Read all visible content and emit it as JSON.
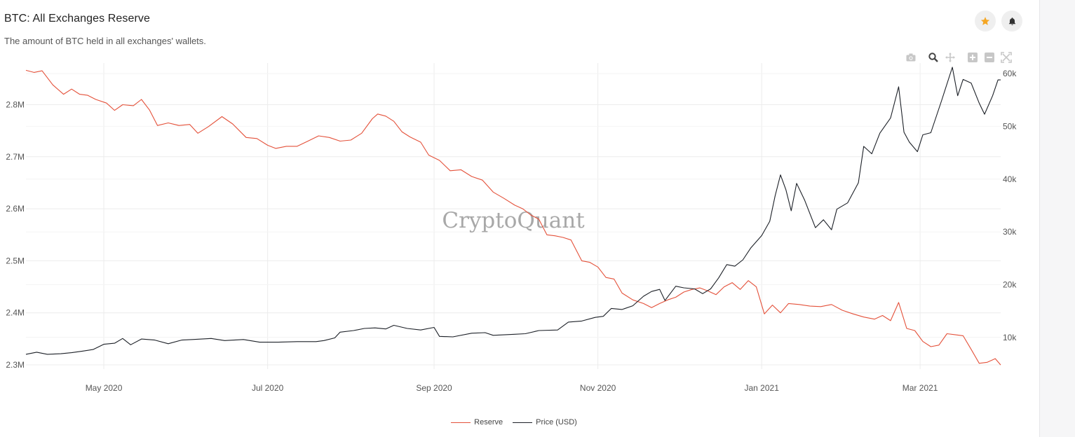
{
  "header": {
    "title": "BTC: All Exchanges Reserve",
    "subtitle": "The amount of BTC held in all exchanges' wallets."
  },
  "icons": {
    "favorite": "star-icon",
    "alerts": "bell-icon",
    "modebar": [
      "camera-icon",
      "zoom-icon",
      "pan-icon",
      "zoom-in-icon",
      "zoom-out-icon",
      "autoscale-icon"
    ]
  },
  "colors": {
    "reserve": "#e4513a",
    "price": "#1c2027",
    "star": "#f5a623",
    "grid": "#ececec"
  },
  "watermark": "CryptoQuant",
  "chart_data": {
    "type": "line",
    "x_start": "2020-04-02",
    "x_end": "2021-03-31",
    "xticks": [
      {
        "date": "2020-05-01",
        "label": "May 2020"
      },
      {
        "date": "2020-07-01",
        "label": "Jul 2020"
      },
      {
        "date": "2020-09-01",
        "label": "Sep 2020"
      },
      {
        "date": "2020-11-01",
        "label": "Nov 2020"
      },
      {
        "date": "2021-01-01",
        "label": "Jan 2021"
      },
      {
        "date": "2021-03-01",
        "label": "Mar 2021"
      }
    ],
    "y_left": {
      "range": [
        2292000,
        2880000
      ],
      "ticks": [
        2300000,
        2400000,
        2500000,
        2600000,
        2700000,
        2800000
      ],
      "tick_labels": [
        "2.3M",
        "2.4M",
        "2.5M",
        "2.6M",
        "2.7M",
        "2.8M"
      ]
    },
    "y_right": {
      "range": [
        4000,
        62000
      ],
      "ticks": [
        10000,
        20000,
        30000,
        40000,
        50000,
        60000
      ],
      "tick_labels": [
        "10k",
        "20k",
        "30k",
        "40k",
        "50k",
        "60k"
      ]
    },
    "grid": true,
    "legend_position": "bottom-center",
    "series": [
      {
        "name": "Reserve",
        "axis": "left",
        "points": [
          [
            "2020-04-02",
            2866000
          ],
          [
            "2020-04-05",
            2862000
          ],
          [
            "2020-04-08",
            2865000
          ],
          [
            "2020-04-12",
            2838000
          ],
          [
            "2020-04-16",
            2820000
          ],
          [
            "2020-04-19",
            2830000
          ],
          [
            "2020-04-22",
            2820000
          ],
          [
            "2020-04-25",
            2818000
          ],
          [
            "2020-04-28",
            2810000
          ],
          [
            "2020-05-02",
            2803000
          ],
          [
            "2020-05-05",
            2789000
          ],
          [
            "2020-05-08",
            2800000
          ],
          [
            "2020-05-12",
            2798000
          ],
          [
            "2020-05-15",
            2810000
          ],
          [
            "2020-05-18",
            2790000
          ],
          [
            "2020-05-21",
            2760000
          ],
          [
            "2020-05-25",
            2765000
          ],
          [
            "2020-05-29",
            2760000
          ],
          [
            "2020-06-02",
            2762000
          ],
          [
            "2020-06-05",
            2745000
          ],
          [
            "2020-06-09",
            2758000
          ],
          [
            "2020-06-14",
            2777000
          ],
          [
            "2020-06-18",
            2763000
          ],
          [
            "2020-06-23",
            2737000
          ],
          [
            "2020-06-27",
            2735000
          ],
          [
            "2020-07-01",
            2722000
          ],
          [
            "2020-07-04",
            2716000
          ],
          [
            "2020-07-08",
            2720000
          ],
          [
            "2020-07-12",
            2720000
          ],
          [
            "2020-07-16",
            2730000
          ],
          [
            "2020-07-20",
            2740000
          ],
          [
            "2020-07-24",
            2737000
          ],
          [
            "2020-07-28",
            2730000
          ],
          [
            "2020-08-01",
            2732000
          ],
          [
            "2020-08-05",
            2745000
          ],
          [
            "2020-08-09",
            2773000
          ],
          [
            "2020-08-11",
            2782000
          ],
          [
            "2020-08-14",
            2778000
          ],
          [
            "2020-08-17",
            2768000
          ],
          [
            "2020-08-20",
            2748000
          ],
          [
            "2020-08-23",
            2738000
          ],
          [
            "2020-08-27",
            2728000
          ],
          [
            "2020-08-30",
            2703000
          ],
          [
            "2020-09-03",
            2693000
          ],
          [
            "2020-09-07",
            2673000
          ],
          [
            "2020-09-11",
            2675000
          ],
          [
            "2020-09-15",
            2662000
          ],
          [
            "2020-09-19",
            2655000
          ],
          [
            "2020-09-23",
            2632000
          ],
          [
            "2020-09-27",
            2620000
          ],
          [
            "2020-10-01",
            2607000
          ],
          [
            "2020-10-04",
            2600000
          ],
          [
            "2020-10-07",
            2588000
          ],
          [
            "2020-10-10",
            2580000
          ],
          [
            "2020-10-13",
            2550000
          ],
          [
            "2020-10-16",
            2548000
          ],
          [
            "2020-10-19",
            2545000
          ],
          [
            "2020-10-22",
            2540000
          ],
          [
            "2020-10-26",
            2500000
          ],
          [
            "2020-10-29",
            2497000
          ],
          [
            "2020-11-01",
            2488000
          ],
          [
            "2020-11-04",
            2468000
          ],
          [
            "2020-11-07",
            2465000
          ],
          [
            "2020-11-10",
            2438000
          ],
          [
            "2020-11-14",
            2425000
          ],
          [
            "2020-11-18",
            2418000
          ],
          [
            "2020-11-21",
            2410000
          ],
          [
            "2020-11-24",
            2418000
          ],
          [
            "2020-11-27",
            2425000
          ],
          [
            "2020-11-30",
            2430000
          ],
          [
            "2020-12-03",
            2440000
          ],
          [
            "2020-12-06",
            2445000
          ],
          [
            "2020-12-09",
            2448000
          ],
          [
            "2020-12-12",
            2442000
          ],
          [
            "2020-12-15",
            2435000
          ],
          [
            "2020-12-18",
            2450000
          ],
          [
            "2020-12-21",
            2458000
          ],
          [
            "2020-12-24",
            2445000
          ],
          [
            "2020-12-27",
            2462000
          ],
          [
            "2020-12-30",
            2450000
          ],
          [
            "2021-01-02",
            2398000
          ],
          [
            "2021-01-05",
            2415000
          ],
          [
            "2021-01-08",
            2400000
          ],
          [
            "2021-01-11",
            2418000
          ],
          [
            "2021-01-15",
            2416000
          ],
          [
            "2021-01-19",
            2413000
          ],
          [
            "2021-01-23",
            2412000
          ],
          [
            "2021-01-27",
            2416000
          ],
          [
            "2021-01-31",
            2405000
          ],
          [
            "2021-02-04",
            2398000
          ],
          [
            "2021-02-08",
            2392000
          ],
          [
            "2021-02-12",
            2388000
          ],
          [
            "2021-02-15",
            2395000
          ],
          [
            "2021-02-18",
            2385000
          ],
          [
            "2021-02-21",
            2420000
          ],
          [
            "2021-02-24",
            2370000
          ],
          [
            "2021-02-27",
            2366000
          ],
          [
            "2021-03-02",
            2345000
          ],
          [
            "2021-03-05",
            2335000
          ],
          [
            "2021-03-08",
            2338000
          ],
          [
            "2021-03-11",
            2360000
          ],
          [
            "2021-03-14",
            2358000
          ],
          [
            "2021-03-17",
            2356000
          ],
          [
            "2021-03-20",
            2330000
          ],
          [
            "2021-03-23",
            2303000
          ],
          [
            "2021-03-26",
            2305000
          ],
          [
            "2021-03-29",
            2312000
          ],
          [
            "2021-03-31",
            2300000
          ]
        ]
      },
      {
        "name": "Price (USD)",
        "axis": "right",
        "points": [
          [
            "2020-04-02",
            6800
          ],
          [
            "2020-04-06",
            7200
          ],
          [
            "2020-04-10",
            6800
          ],
          [
            "2020-04-15",
            6900
          ],
          [
            "2020-04-19",
            7100
          ],
          [
            "2020-04-23",
            7400
          ],
          [
            "2020-04-27",
            7700
          ],
          [
            "2020-05-01",
            8700
          ],
          [
            "2020-05-05",
            8900
          ],
          [
            "2020-05-08",
            9800
          ],
          [
            "2020-05-11",
            8600
          ],
          [
            "2020-05-15",
            9700
          ],
          [
            "2020-05-20",
            9500
          ],
          [
            "2020-05-25",
            8800
          ],
          [
            "2020-05-30",
            9500
          ],
          [
            "2020-06-03",
            9600
          ],
          [
            "2020-06-10",
            9800
          ],
          [
            "2020-06-15",
            9400
          ],
          [
            "2020-06-22",
            9600
          ],
          [
            "2020-06-28",
            9100
          ],
          [
            "2020-07-05",
            9100
          ],
          [
            "2020-07-12",
            9200
          ],
          [
            "2020-07-19",
            9200
          ],
          [
            "2020-07-22",
            9400
          ],
          [
            "2020-07-26",
            9900
          ],
          [
            "2020-07-28",
            11000
          ],
          [
            "2020-08-02",
            11300
          ],
          [
            "2020-08-06",
            11700
          ],
          [
            "2020-08-10",
            11800
          ],
          [
            "2020-08-14",
            11600
          ],
          [
            "2020-08-17",
            12300
          ],
          [
            "2020-08-22",
            11700
          ],
          [
            "2020-08-27",
            11400
          ],
          [
            "2020-09-01",
            11900
          ],
          [
            "2020-09-03",
            10200
          ],
          [
            "2020-09-08",
            10100
          ],
          [
            "2020-09-15",
            10800
          ],
          [
            "2020-09-20",
            10900
          ],
          [
            "2020-09-23",
            10400
          ],
          [
            "2020-10-01",
            10600
          ],
          [
            "2020-10-05",
            10700
          ],
          [
            "2020-10-10",
            11300
          ],
          [
            "2020-10-17",
            11400
          ],
          [
            "2020-10-21",
            12900
          ],
          [
            "2020-10-26",
            13100
          ],
          [
            "2020-10-31",
            13800
          ],
          [
            "2020-11-03",
            14000
          ],
          [
            "2020-11-06",
            15500
          ],
          [
            "2020-11-10",
            15300
          ],
          [
            "2020-11-14",
            16000
          ],
          [
            "2020-11-18",
            17800
          ],
          [
            "2020-11-21",
            18700
          ],
          [
            "2020-11-24",
            19100
          ],
          [
            "2020-11-26",
            17000
          ],
          [
            "2020-11-30",
            19700
          ],
          [
            "2020-12-03",
            19400
          ],
          [
            "2020-12-07",
            19200
          ],
          [
            "2020-12-10",
            18300
          ],
          [
            "2020-12-13",
            19200
          ],
          [
            "2020-12-16",
            21300
          ],
          [
            "2020-12-19",
            23800
          ],
          [
            "2020-12-22",
            23500
          ],
          [
            "2020-12-25",
            24700
          ],
          [
            "2020-12-28",
            27000
          ],
          [
            "2021-01-01",
            29300
          ],
          [
            "2021-01-04",
            32000
          ],
          [
            "2021-01-06",
            36800
          ],
          [
            "2021-01-08",
            40800
          ],
          [
            "2021-01-10",
            38000
          ],
          [
            "2021-01-12",
            34000
          ],
          [
            "2021-01-14",
            39200
          ],
          [
            "2021-01-17",
            36000
          ],
          [
            "2021-01-21",
            30800
          ],
          [
            "2021-01-24",
            32300
          ],
          [
            "2021-01-27",
            30400
          ],
          [
            "2021-01-29",
            34300
          ],
          [
            "2021-02-02",
            35500
          ],
          [
            "2021-02-06",
            39300
          ],
          [
            "2021-02-08",
            46200
          ],
          [
            "2021-02-11",
            44800
          ],
          [
            "2021-02-14",
            48700
          ],
          [
            "2021-02-18",
            51600
          ],
          [
            "2021-02-21",
            57500
          ],
          [
            "2021-02-23",
            48900
          ],
          [
            "2021-02-25",
            47000
          ],
          [
            "2021-02-28",
            45200
          ],
          [
            "2021-03-02",
            48400
          ],
          [
            "2021-03-05",
            48800
          ],
          [
            "2021-03-09",
            54900
          ],
          [
            "2021-03-13",
            61200
          ],
          [
            "2021-03-15",
            55800
          ],
          [
            "2021-03-17",
            58900
          ],
          [
            "2021-03-20",
            58200
          ],
          [
            "2021-03-23",
            54400
          ],
          [
            "2021-03-25",
            52300
          ],
          [
            "2021-03-28",
            55800
          ],
          [
            "2021-03-30",
            58800
          ],
          [
            "2021-03-31",
            58800
          ]
        ]
      }
    ]
  }
}
